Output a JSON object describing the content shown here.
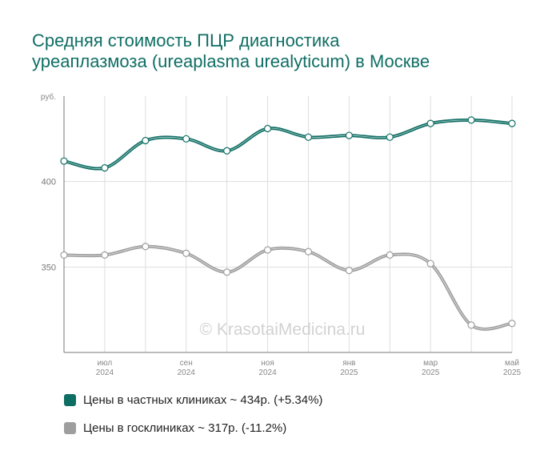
{
  "title_line1": "Средняя стоимость ПЦР диагностика",
  "title_line2": "уреаплазмоза (ureaplasma urealyticum) в Москве",
  "watermark": "© KrasotaiMedicina.ru",
  "y_unit": "руб.",
  "legend": [
    {
      "label": "Цены в частных клиниках ~ 434р. (+5.34%)",
      "color": "#0f6e64"
    },
    {
      "label": "Цены в госклиниках ~ 317р. (-11.2%)",
      "color": "#9e9e9e"
    }
  ],
  "chart_data": {
    "type": "line",
    "ylim": [
      300,
      450
    ],
    "y_ticks": [
      400,
      350
    ],
    "x_tick_labels": [
      {
        "month": "июл",
        "year": "2024"
      },
      {
        "month": "сен",
        "year": "2024"
      },
      {
        "month": "ноя",
        "year": "2024"
      },
      {
        "month": "янв",
        "year": "2025"
      },
      {
        "month": "мар",
        "year": "2025"
      },
      {
        "month": "май",
        "year": "2025"
      }
    ],
    "series": [
      {
        "name": "Цены в частных клиниках",
        "color": "#0f6e64",
        "values": [
          412,
          408,
          424,
          425,
          418,
          431,
          426,
          427,
          426,
          434,
          436,
          434
        ]
      },
      {
        "name": "Цены в госклиниках",
        "color": "#9e9e9e",
        "values": [
          357,
          357,
          362,
          358,
          347,
          360,
          359,
          348,
          357,
          352,
          316,
          317
        ]
      }
    ]
  }
}
